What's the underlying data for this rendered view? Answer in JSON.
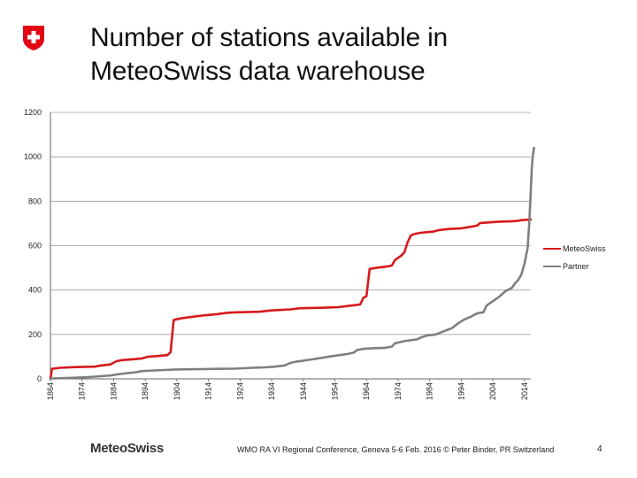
{
  "header": {
    "title_line1": "Number of stations available in",
    "title_line2": "MeteoSwiss data warehouse"
  },
  "footer": {
    "brand": "MeteoSwiss",
    "credit": "WMO RA VI Regional Conference, Geneva 5-6 Feb. 2016 © Peter Binder, PR Switzerland",
    "page": "4"
  },
  "colors": {
    "meteoswiss": "#d7191c",
    "partner": "#7f7f7f",
    "logo": "#e30613",
    "grid": "#999999"
  },
  "chart_data": {
    "type": "line",
    "title": "Number of stations available in MeteoSwiss data warehouse",
    "xlabel": "",
    "ylabel": "",
    "xlim": [
      1864,
      2016
    ],
    "ylim": [
      0,
      1200
    ],
    "yticks": [
      0,
      200,
      400,
      600,
      800,
      1000,
      1200
    ],
    "xticks": [
      1864,
      1874,
      1884,
      1894,
      1904,
      1914,
      1924,
      1934,
      1944,
      1954,
      1964,
      1974,
      1984,
      1994,
      2004,
      2014
    ],
    "grid": "horizontal",
    "legend_position": "right",
    "series": [
      {
        "name": "MeteoSwiss",
        "color": "#d7191c",
        "points": [
          [
            1864,
            0
          ],
          [
            1864.5,
            45
          ],
          [
            1867,
            50
          ],
          [
            1872,
            53
          ],
          [
            1878,
            55
          ],
          [
            1880,
            60
          ],
          [
            1883,
            65
          ],
          [
            1885,
            80
          ],
          [
            1887,
            85
          ],
          [
            1890,
            88
          ],
          [
            1893,
            92
          ],
          [
            1895,
            100
          ],
          [
            1898,
            103
          ],
          [
            1901,
            107
          ],
          [
            1902,
            120
          ],
          [
            1903,
            265
          ],
          [
            1905,
            272
          ],
          [
            1908,
            278
          ],
          [
            1912,
            285
          ],
          [
            1914,
            288
          ],
          [
            1917,
            292
          ],
          [
            1920,
            298
          ],
          [
            1923,
            300
          ],
          [
            1930,
            302
          ],
          [
            1934,
            308
          ],
          [
            1940,
            313
          ],
          [
            1943,
            318
          ],
          [
            1950,
            320
          ],
          [
            1955,
            323
          ],
          [
            1958,
            328
          ],
          [
            1962,
            335
          ],
          [
            1963,
            365
          ],
          [
            1964,
            372
          ],
          [
            1965,
            495
          ],
          [
            1967,
            500
          ],
          [
            1970,
            505
          ],
          [
            1972,
            510
          ],
          [
            1973,
            535
          ],
          [
            1975,
            555
          ],
          [
            1976,
            570
          ],
          [
            1977,
            615
          ],
          [
            1978,
            645
          ],
          [
            1979,
            652
          ],
          [
            1981,
            658
          ],
          [
            1985,
            663
          ],
          [
            1987,
            670
          ],
          [
            1990,
            675
          ],
          [
            1994,
            678
          ],
          [
            1997,
            685
          ],
          [
            1999,
            690
          ],
          [
            2000,
            702
          ],
          [
            2003,
            705
          ],
          [
            2006,
            708
          ],
          [
            2010,
            710
          ],
          [
            2012,
            712
          ],
          [
            2013,
            715
          ],
          [
            2016,
            718
          ]
        ]
      },
      {
        "name": "Partner",
        "color": "#7f7f7f",
        "points": [
          [
            1864,
            0
          ],
          [
            1864.5,
            2
          ],
          [
            1868,
            3
          ],
          [
            1872,
            5
          ],
          [
            1876,
            8
          ],
          [
            1880,
            12
          ],
          [
            1883,
            15
          ],
          [
            1885,
            20
          ],
          [
            1888,
            25
          ],
          [
            1891,
            30
          ],
          [
            1893,
            35
          ],
          [
            1897,
            38
          ],
          [
            1900,
            40
          ],
          [
            1903,
            42
          ],
          [
            1907,
            43
          ],
          [
            1912,
            44
          ],
          [
            1917,
            45
          ],
          [
            1922,
            46
          ],
          [
            1925,
            48
          ],
          [
            1928,
            50
          ],
          [
            1932,
            52
          ],
          [
            1935,
            55
          ],
          [
            1938,
            60
          ],
          [
            1940,
            72
          ],
          [
            1942,
            78
          ],
          [
            1944,
            82
          ],
          [
            1947,
            88
          ],
          [
            1950,
            95
          ],
          [
            1953,
            102
          ],
          [
            1956,
            108
          ],
          [
            1958,
            112
          ],
          [
            1960,
            118
          ],
          [
            1961,
            130
          ],
          [
            1963,
            135
          ],
          [
            1966,
            138
          ],
          [
            1970,
            140
          ],
          [
            1972,
            145
          ],
          [
            1973,
            160
          ],
          [
            1976,
            170
          ],
          [
            1980,
            178
          ],
          [
            1981,
            185
          ],
          [
            1983,
            195
          ],
          [
            1986,
            200
          ],
          [
            1988,
            212
          ],
          [
            1991,
            228
          ],
          [
            1993,
            250
          ],
          [
            1995,
            268
          ],
          [
            1997,
            280
          ],
          [
            1999,
            295
          ],
          [
            2001,
            300
          ],
          [
            2002,
            330
          ],
          [
            2004,
            350
          ],
          [
            2006,
            370
          ],
          [
            2008,
            395
          ],
          [
            2010,
            410
          ],
          [
            2011,
            430
          ],
          [
            2012,
            445
          ],
          [
            2013,
            470
          ],
          [
            2014,
            520
          ],
          [
            2015,
            590
          ],
          [
            2015.5,
            700
          ],
          [
            2016,
            850
          ],
          [
            2016.3,
            950
          ],
          [
            2016.6,
            1000
          ],
          [
            2017,
            1040
          ]
        ]
      }
    ]
  }
}
